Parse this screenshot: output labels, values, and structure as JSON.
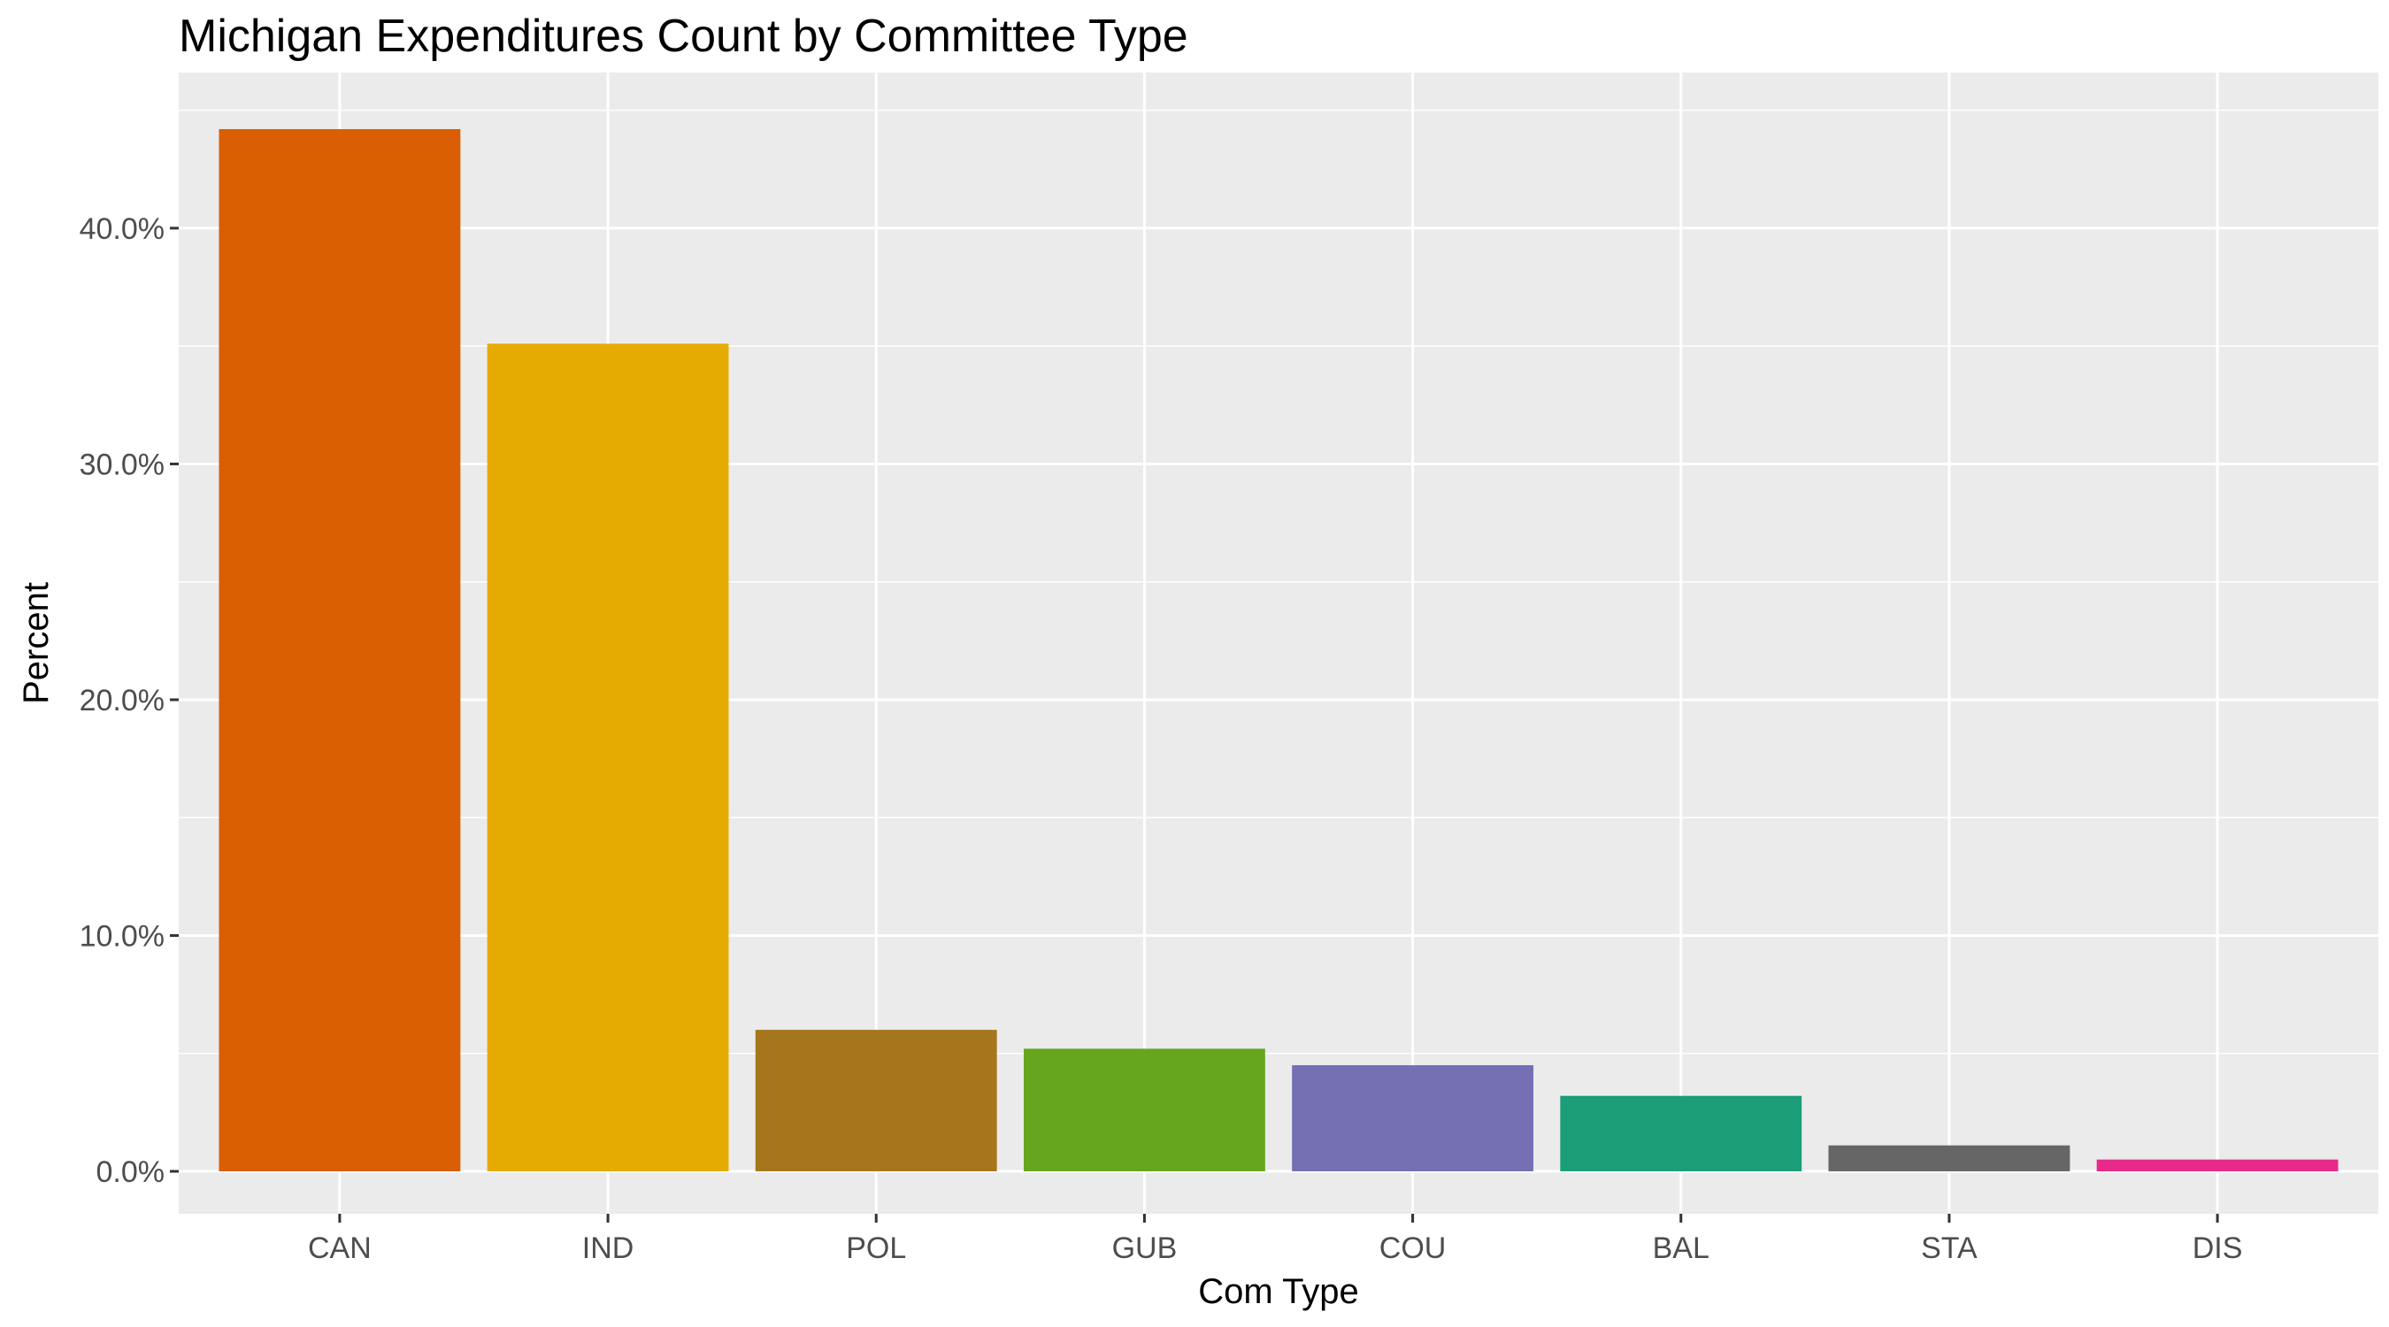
{
  "chart_data": {
    "type": "bar",
    "title": "Michigan Expenditures Count by Committee Type",
    "xlabel": "Com Type",
    "ylabel": "Percent",
    "categories": [
      "CAN",
      "IND",
      "POL",
      "GUB",
      "COU",
      "BAL",
      "STA",
      "DIS"
    ],
    "values": [
      44.2,
      35.1,
      6.0,
      5.2,
      4.5,
      3.2,
      1.1,
      0.5
    ],
    "colors": [
      "#D95F02",
      "#E6AB02",
      "#A6761D",
      "#66A61E",
      "#7570B3",
      "#1B9E77",
      "#666666",
      "#E7298A"
    ],
    "ylim": [
      -1.8,
      46.6
    ],
    "yticks": [
      0,
      10,
      20,
      30,
      40
    ],
    "ytick_labels": [
      "0.0%",
      "10.0%",
      "20.0%",
      "30.0%",
      "40.0%"
    ],
    "grid": true,
    "legend": "none",
    "panel_background": "#EBEBEB",
    "grid_color": "#FFFFFF"
  }
}
